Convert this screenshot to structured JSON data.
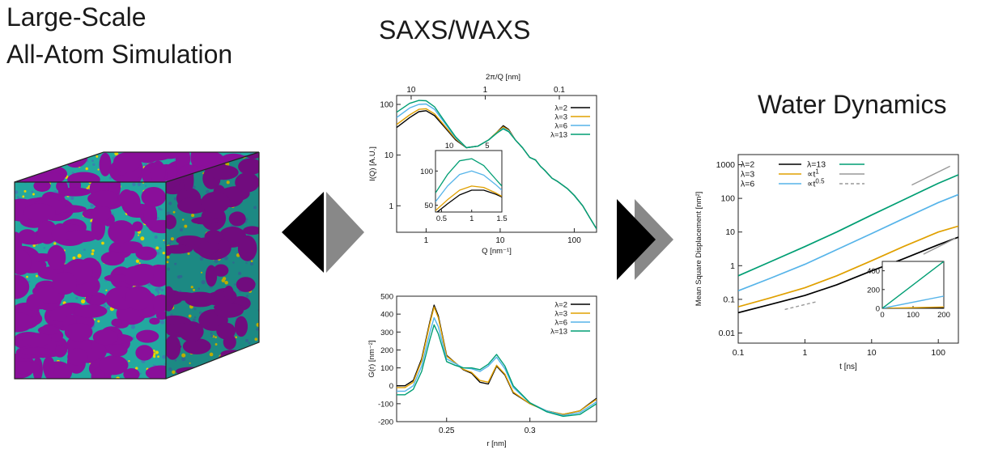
{
  "headings": {
    "left_line1": "Large-Scale",
    "left_line2": "All-Atom Simulation",
    "middle": "SAXS/WAXS",
    "right": "Water Dynamics"
  },
  "colors": {
    "lambda2": "#000000",
    "lambda3": "#e0a000",
    "lambda6": "#56b4e9",
    "lambda13": "#009e73",
    "ref_t1": "#999999",
    "ref_t05": "#999999",
    "cube_purple": "#8a0f9a",
    "cube_teal": "#23a8a0",
    "cube_yellow": "#e6d400",
    "arrow_dark": "#000000",
    "arrow_light": "#888888"
  },
  "chart_data": [
    {
      "id": "saxs",
      "type": "line",
      "xlabel": "Q [nm⁻¹]",
      "ylabel": "I(Q) [A.U.]",
      "top_xlabel": "2π/Q [nm]",
      "xscale": "log",
      "yscale": "log",
      "xlim": [
        0.4,
        200
      ],
      "ylim": [
        0.3,
        150
      ],
      "xticks": [
        "1",
        "10",
        "100"
      ],
      "yticks": [
        "1",
        "10",
        "100"
      ],
      "top_ticks": [
        "10",
        "1",
        "0.1"
      ],
      "legend": "top-right",
      "series": [
        {
          "name": "λ=2",
          "x": [
            0.4,
            0.6,
            0.8,
            1.0,
            1.3,
            1.8,
            2.5,
            3.5,
            5,
            7,
            9,
            11,
            13,
            16,
            20,
            25,
            30,
            35,
            40,
            50,
            60,
            80,
            100,
            130,
            160,
            200
          ],
          "y": [
            35,
            55,
            72,
            75,
            60,
            35,
            20,
            14,
            15,
            20,
            28,
            38,
            32,
            20,
            14,
            9,
            8,
            6,
            5,
            3.5,
            3,
            2.2,
            1.6,
            1.0,
            0.6,
            0.35
          ]
        },
        {
          "name": "λ=3",
          "x": [
            0.4,
            0.6,
            0.8,
            1.0,
            1.3,
            1.8,
            2.5,
            3.5,
            5,
            7,
            9,
            11,
            13,
            16,
            20,
            25,
            30,
            35,
            40,
            50,
            60,
            80,
            100,
            130,
            160,
            200
          ],
          "y": [
            40,
            62,
            80,
            82,
            65,
            37,
            21,
            14,
            15,
            20,
            28,
            36,
            31,
            20,
            14,
            9,
            8,
            6,
            5,
            3.5,
            3,
            2.2,
            1.6,
            1.0,
            0.6,
            0.35
          ]
        },
        {
          "name": "λ=6",
          "x": [
            0.4,
            0.6,
            0.8,
            1.0,
            1.3,
            1.8,
            2.5,
            3.5,
            5,
            7,
            9,
            11,
            13,
            16,
            20,
            25,
            30,
            35,
            40,
            50,
            60,
            80,
            100,
            130,
            160,
            200
          ],
          "y": [
            55,
            85,
            100,
            102,
            80,
            42,
            22,
            14,
            15,
            20,
            27,
            34,
            30,
            20,
            14,
            9,
            8,
            6,
            5,
            3.5,
            3,
            2.2,
            1.6,
            1.0,
            0.6,
            0.35
          ]
        },
        {
          "name": "λ=13",
          "x": [
            0.4,
            0.6,
            0.8,
            1.0,
            1.3,
            1.8,
            2.5,
            3.5,
            5,
            7,
            9,
            11,
            13,
            16,
            20,
            25,
            30,
            35,
            40,
            50,
            60,
            80,
            100,
            130,
            160,
            200
          ],
          "y": [
            70,
            105,
            120,
            118,
            90,
            45,
            23,
            14,
            15,
            20,
            27,
            33,
            29,
            20,
            14,
            9,
            8,
            6,
            5,
            3.5,
            3,
            2.2,
            1.6,
            1.0,
            0.6,
            0.35
          ]
        }
      ],
      "inset": {
        "xlim": [
          0.4,
          1.5
        ],
        "ylim": [
          40,
          130
        ],
        "xticks": [
          "0.5",
          "1",
          "1.5"
        ],
        "yticks": [
          "50",
          "100"
        ],
        "top_ticks": [
          "10",
          "5"
        ],
        "series": [
          {
            "name": "λ=2",
            "x": [
              0.4,
              0.6,
              0.8,
              1.0,
              1.2,
              1.4,
              1.5
            ],
            "y": [
              38,
              52,
              65,
              72,
              72,
              66,
              62
            ]
          },
          {
            "name": "λ=3",
            "x": [
              0.4,
              0.6,
              0.8,
              1.0,
              1.2,
              1.4,
              1.5
            ],
            "y": [
              42,
              58,
              72,
              78,
              76,
              68,
              63
            ]
          },
          {
            "name": "λ=6",
            "x": [
              0.4,
              0.6,
              0.8,
              1.0,
              1.2,
              1.4,
              1.5
            ],
            "y": [
              55,
              78,
              95,
              100,
              94,
              80,
              72
            ]
          },
          {
            "name": "λ=13",
            "x": [
              0.4,
              0.6,
              0.8,
              1.0,
              1.2,
              1.4,
              1.5
            ],
            "y": [
              68,
              95,
              115,
              118,
              108,
              88,
              78
            ]
          }
        ]
      }
    },
    {
      "id": "rdf",
      "type": "line",
      "xlabel": "r [nm]",
      "ylabel": "G(r) [nm⁻²]",
      "xlim": [
        0.22,
        0.34
      ],
      "ylim": [
        -200,
        500
      ],
      "xticks": [
        "0.25",
        "0.3"
      ],
      "yticks": [
        "-200",
        "-100",
        "0",
        "100",
        "200",
        "300",
        "400",
        "500"
      ],
      "legend": "top-right",
      "series": [
        {
          "name": "λ=2",
          "x": [
            0.22,
            0.225,
            0.23,
            0.235,
            0.24,
            0.2425,
            0.245,
            0.25,
            0.255,
            0.26,
            0.265,
            0.27,
            0.275,
            0.28,
            0.285,
            0.29,
            0.3,
            0.31,
            0.32,
            0.33,
            0.34
          ],
          "y": [
            0,
            0,
            30,
            150,
            360,
            450,
            390,
            170,
            130,
            90,
            70,
            20,
            10,
            110,
            60,
            -40,
            -100,
            -140,
            -160,
            -140,
            -70
          ]
        },
        {
          "name": "λ=3",
          "x": [
            0.22,
            0.225,
            0.23,
            0.235,
            0.24,
            0.2425,
            0.245,
            0.25,
            0.255,
            0.26,
            0.265,
            0.27,
            0.275,
            0.28,
            0.285,
            0.29,
            0.3,
            0.31,
            0.32,
            0.33,
            0.34
          ],
          "y": [
            -10,
            -10,
            20,
            140,
            350,
            440,
            380,
            165,
            130,
            92,
            75,
            30,
            20,
            115,
            65,
            -35,
            -100,
            -140,
            -160,
            -140,
            -75
          ]
        },
        {
          "name": "λ=6",
          "x": [
            0.22,
            0.225,
            0.23,
            0.235,
            0.24,
            0.2425,
            0.245,
            0.25,
            0.255,
            0.26,
            0.265,
            0.27,
            0.275,
            0.28,
            0.285,
            0.29,
            0.3,
            0.31,
            0.32,
            0.33,
            0.34
          ],
          "y": [
            -30,
            -30,
            0,
            110,
            300,
            380,
            330,
            150,
            125,
            100,
            95,
            80,
            110,
            160,
            95,
            -10,
            -95,
            -140,
            -165,
            -150,
            -90
          ]
        },
        {
          "name": "λ=13",
          "x": [
            0.22,
            0.225,
            0.23,
            0.235,
            0.24,
            0.2425,
            0.245,
            0.25,
            0.255,
            0.26,
            0.265,
            0.27,
            0.275,
            0.28,
            0.285,
            0.29,
            0.3,
            0.31,
            0.32,
            0.33,
            0.34
          ],
          "y": [
            -50,
            -50,
            -20,
            80,
            260,
            340,
            290,
            135,
            115,
            100,
            100,
            90,
            120,
            175,
            110,
            0,
            -95,
            -145,
            -170,
            -160,
            -100
          ]
        }
      ]
    },
    {
      "id": "msd",
      "type": "line",
      "xlabel": "t [ns]",
      "ylabel": "Mean Square Displacement [nm²]",
      "xscale": "log",
      "yscale": "log",
      "xlim": [
        0.1,
        200
      ],
      "ylim": [
        0.005,
        2000
      ],
      "xticks": [
        "0.1",
        "1",
        "10",
        "100"
      ],
      "yticks": [
        "0.01",
        "0.1",
        "1",
        "10",
        "100",
        "1000"
      ],
      "legend": "top-left",
      "series": [
        {
          "name": "λ=2",
          "x": [
            0.1,
            0.3,
            1,
            3,
            10,
            30,
            100,
            200
          ],
          "y": [
            0.04,
            0.07,
            0.13,
            0.27,
            0.7,
            1.6,
            4.2,
            7.0
          ]
        },
        {
          "name": "λ=3",
          "x": [
            0.1,
            0.3,
            1,
            3,
            10,
            30,
            100,
            200
          ],
          "y": [
            0.06,
            0.11,
            0.22,
            0.5,
            1.4,
            3.7,
            10,
            15
          ]
        },
        {
          "name": "λ=6",
          "x": [
            0.1,
            0.3,
            1,
            3,
            10,
            30,
            100,
            200
          ],
          "y": [
            0.18,
            0.42,
            1.1,
            3,
            9,
            25,
            75,
            130
          ]
        },
        {
          "name": "λ=13",
          "x": [
            0.1,
            0.3,
            1,
            3,
            10,
            30,
            100,
            200
          ],
          "y": [
            0.5,
            1.3,
            3.7,
            10,
            32,
            90,
            280,
            500
          ]
        },
        {
          "name": "∝t¹",
          "x": [
            40,
            150
          ],
          "y": [
            250,
            900
          ]
        },
        {
          "name": "∝t⁰·⁵",
          "x": [
            0.5,
            1.5
          ],
          "y": [
            0.05,
            0.085
          ]
        }
      ],
      "legend_entries": [
        {
          "name": "λ=2",
          "sup": ""
        },
        {
          "name": "λ=3",
          "sup": ""
        },
        {
          "name": "λ=6",
          "sup": ""
        },
        {
          "name": "λ=13",
          "sup": ""
        },
        {
          "name": "∝t",
          "sup": "1"
        },
        {
          "name": "∝t",
          "sup": "0.5"
        }
      ],
      "inset": {
        "xlim": [
          0,
          200
        ],
        "ylim": [
          0,
          500
        ],
        "xticks": [
          "0",
          "100",
          "200"
        ],
        "yticks": [
          "0",
          "200",
          "400"
        ],
        "series": [
          {
            "name": "λ=2",
            "x": [
              0,
              200
            ],
            "y": [
              0,
              7
            ]
          },
          {
            "name": "λ=3",
            "x": [
              0,
              200
            ],
            "y": [
              0,
              15
            ]
          },
          {
            "name": "λ=6",
            "x": [
              0,
              200
            ],
            "y": [
              0,
              130
            ]
          },
          {
            "name": "λ=13",
            "x": [
              0,
              200
            ],
            "y": [
              0,
              500
            ]
          }
        ]
      }
    }
  ]
}
